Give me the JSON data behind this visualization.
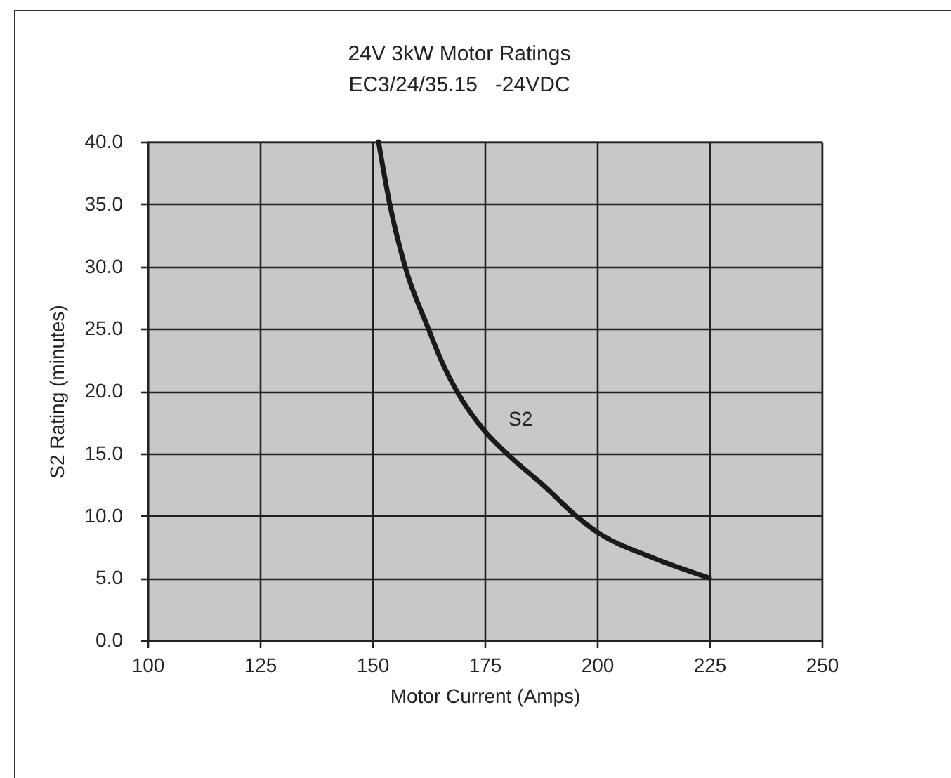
{
  "chart_data": {
    "type": "line",
    "title": "24V 3kW Motor Ratings",
    "subtitle": "EC3/24/35.15   -24VDC",
    "xlabel": "Motor Current (Amps)",
    "ylabel": "S2 Rating (minutes)",
    "x": [
      151.4,
      153.9,
      157.3,
      162.5,
      165.3,
      168.8,
      175.0,
      179.9,
      188.5,
      195.3,
      200.0,
      212.6,
      225.0
    ],
    "series": [
      {
        "name": "S2",
        "color": "#1a1a1a",
        "values": [
          40.0,
          35.0,
          30.0,
          25.0,
          22.5,
          20.0,
          16.8,
          15.0,
          12.3,
          10.0,
          8.7,
          6.6,
          5.0
        ]
      }
    ],
    "xlim": [
      100,
      250
    ],
    "xticks": [
      100,
      125,
      150,
      175,
      200,
      225,
      250
    ],
    "ylim": [
      0,
      40
    ],
    "yticks": [
      {
        "value": 0,
        "label": "0.0"
      },
      {
        "value": 5,
        "label": "5.0"
      },
      {
        "value": 10,
        "label": "10.0"
      },
      {
        "value": 15,
        "label": "15.0"
      },
      {
        "value": 20,
        "label": "20.0"
      },
      {
        "value": 25,
        "label": "25.0"
      },
      {
        "value": 30,
        "label": "30.0"
      },
      {
        "value": 35,
        "label": "35.0"
      },
      {
        "value": 40,
        "label": "40.0"
      }
    ],
    "grid": true
  }
}
